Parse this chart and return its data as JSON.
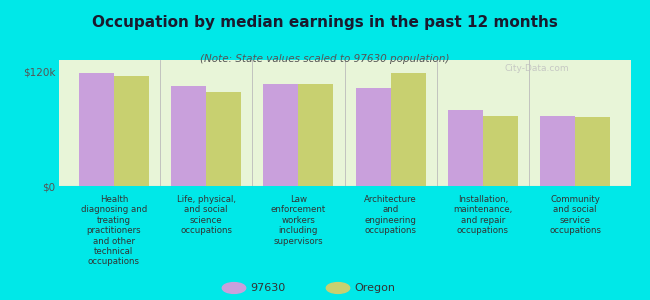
{
  "title": "Occupation by median earnings in the past 12 months",
  "subtitle": "(Note: State values scaled to 97630 population)",
  "background_color": "#00e8e8",
  "plot_bg_color": "#e8f5d8",
  "categories": [
    "Health\ndiagnosing and\ntreating\npractitioners\nand other\ntechnical\noccupations",
    "Life, physical,\nand social\nscience\noccupations",
    "Law\nenforcement\nworkers\nincluding\nsupervisors",
    "Architecture\nand\nengineering\noccupations",
    "Installation,\nmaintenance,\nand repair\noccupations",
    "Community\nand social\nservice\noccupations"
  ],
  "values_97630": [
    118000,
    105000,
    107000,
    103000,
    80000,
    73000
  ],
  "values_oregon": [
    115000,
    98000,
    107000,
    118000,
    73000,
    72000
  ],
  "color_97630": "#c9a0dc",
  "color_oregon": "#c8d070",
  "ylim": [
    0,
    132000
  ],
  "yticks": [
    0,
    120000
  ],
  "ytick_labels": [
    "$0",
    "$120k"
  ],
  "legend_labels": [
    "97630",
    "Oregon"
  ],
  "watermark": "City-Data.com"
}
